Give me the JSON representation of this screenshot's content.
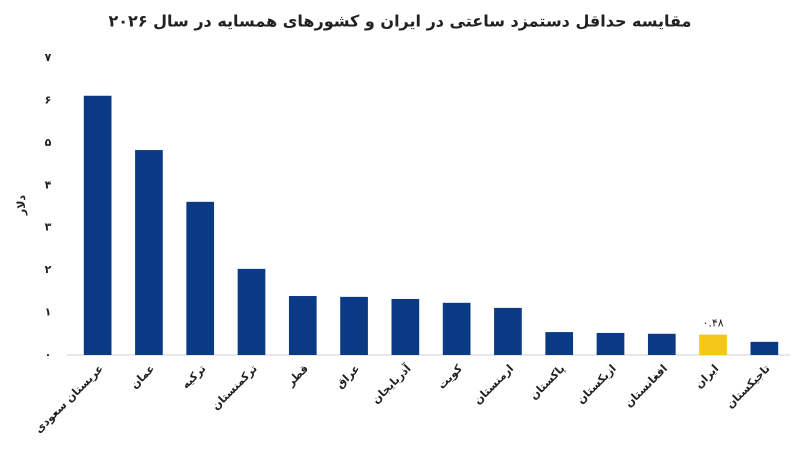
{
  "chart_data": {
    "type": "bar",
    "title": "مقایسه حداقل دستمزد ساعتی در ایران و کشورهای همسایه در سال ۲۰۲۶",
    "y_label": "دلار",
    "categories": [
      "عربستان سعودی",
      "عمان",
      "ترکیه",
      "ترکمنستان",
      "قطر",
      "عراق",
      "آذربایجان",
      "کویت",
      "ارمنستان",
      "پاکستان",
      "ازبکستان",
      "افغانستان",
      "ایران",
      "تاجیکستان"
    ],
    "values": [
      6.11,
      4.83,
      3.61,
      2.03,
      1.39,
      1.37,
      1.32,
      1.23,
      1.11,
      0.54,
      0.52,
      0.5,
      0.48,
      0.31
    ],
    "value_labels": [
      null,
      null,
      null,
      null,
      null,
      null,
      null,
      null,
      null,
      null,
      null,
      null,
      "۰.۴۸",
      null
    ],
    "colors": [
      "#0a3a84",
      "#0a3a84",
      "#0a3a84",
      "#0a3a84",
      "#0a3a84",
      "#0a3a84",
      "#0a3a84",
      "#0a3a84",
      "#0a3a84",
      "#0a3a84",
      "#0a3a84",
      "#0a3a84",
      "#f5c518",
      "#0a3a84"
    ],
    "ylim": [
      0,
      7
    ],
    "yticks": [
      {
        "value": 0,
        "label": "۰"
      },
      {
        "value": 1,
        "label": "۱"
      },
      {
        "value": 2,
        "label": "۲"
      },
      {
        "value": 3,
        "label": "۳"
      },
      {
        "value": 4,
        "label": "۴"
      },
      {
        "value": 5,
        "label": "۵"
      },
      {
        "value": 6,
        "label": "۶"
      },
      {
        "value": 7,
        "label": "۷"
      }
    ],
    "grid": false
  }
}
